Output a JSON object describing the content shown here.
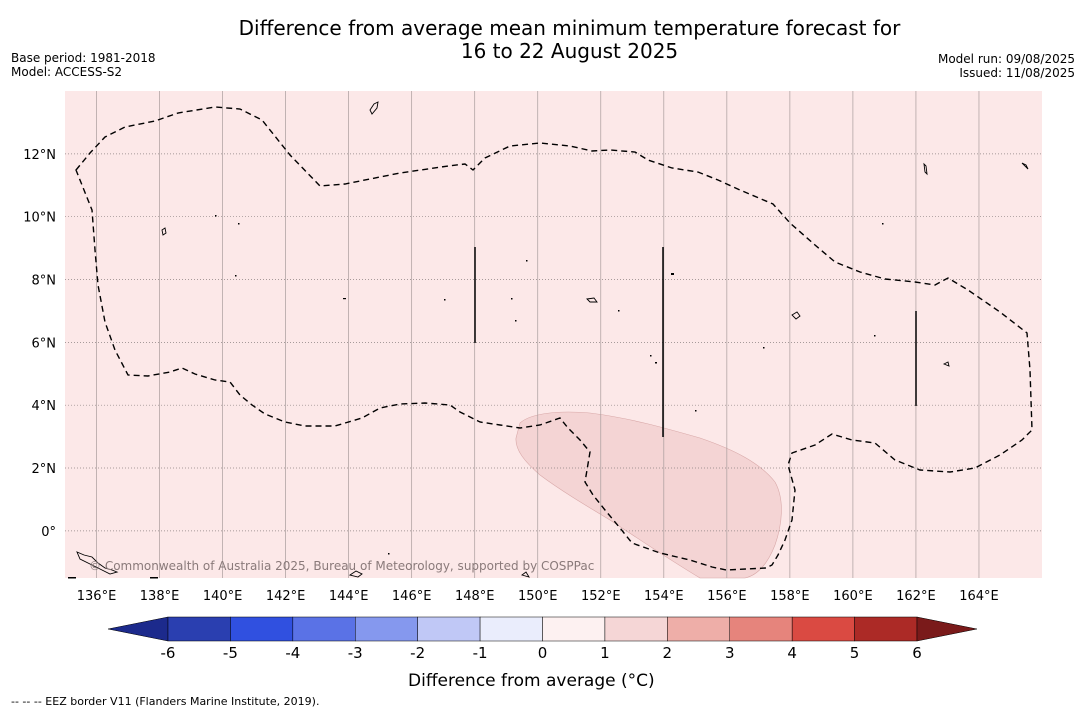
{
  "header": {
    "title_line1": "Difference from average mean minimum temperature forecast for",
    "title_line2": "16 to 22 August 2025",
    "base_period": "Base period: 1981-2018",
    "model": "Model: ACCESS-S2",
    "model_run": "Model run: 09/08/2025",
    "issued": "Issued: 11/08/2025"
  },
  "map": {
    "lon_range": [
      135,
      166
    ],
    "lat_range": [
      -1.5,
      14
    ],
    "lon_ticks": [
      "136°E",
      "138°E",
      "140°E",
      "142°E",
      "144°E",
      "146°E",
      "148°E",
      "150°E",
      "152°E",
      "154°E",
      "156°E",
      "158°E",
      "160°E",
      "162°E",
      "164°E"
    ],
    "lat_ticks": [
      "12°N",
      "10°N",
      "8°N",
      "6°N",
      "4°N",
      "2°N",
      "0°"
    ],
    "background_category": "0 to 1",
    "copyright": "© Commonwealth of Australia 2025, Bureau of Meteorology, supported by COSPPac",
    "colors": {
      "background": "#fce8e8",
      "anomaly_1_2": "#f4d4d4",
      "border": "#000000"
    }
  },
  "colorbar": {
    "title": "Difference from average (°C)",
    "tick_labels": [
      "-6",
      "-5",
      "-4",
      "-3",
      "-2",
      "-1",
      "0",
      "1",
      "2",
      "3",
      "4",
      "5",
      "6"
    ],
    "colors": [
      "#1c2a8c",
      "#2a3fb0",
      "#3050e0",
      "#5a72e6",
      "#8598ee",
      "#c0c8f6",
      "#eaedfc",
      "#fdf1f1",
      "#f5d6d6",
      "#eeaea8",
      "#e6847c",
      "#da4a42",
      "#ac2a26",
      "#7a1a1a"
    ]
  },
  "legend": {
    "eez_note": "--  --  -- EEZ border V11 (Flanders Marine Institute, 2019)."
  }
}
